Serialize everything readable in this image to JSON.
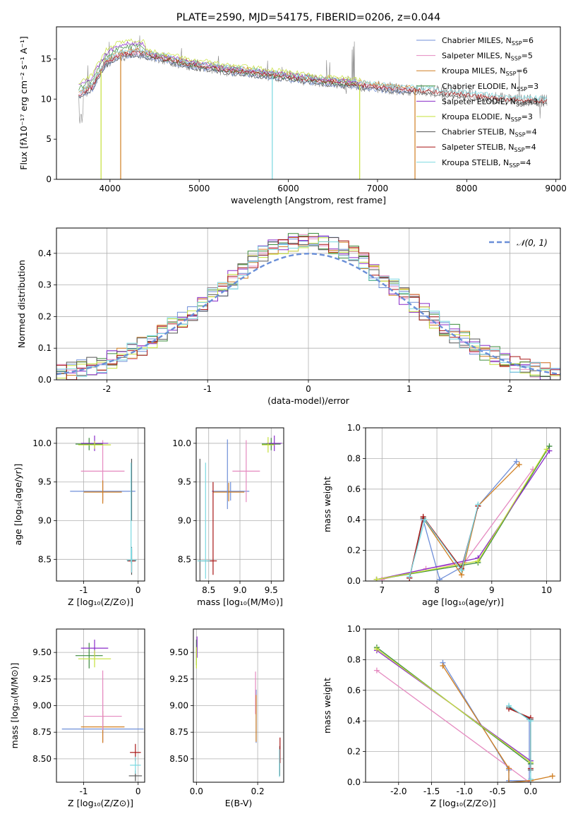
{
  "figure_title": "PLATE=2590, MJD=54175, FIBERID=0206, z=0.044",
  "colors": {
    "Chabrier MILES": "#6f8fd8",
    "Salpeter MILES": "#e58ac0",
    "Kroupa MILES": "#d07f22",
    "Chabrier ELODIE": "#3d8c3d",
    "Salpeter ELODIE": "#8a2bc8",
    "Kroupa ELODIE": "#c5e03a",
    "Chabrier STELIB": "#555555",
    "Salpeter STELIB": "#a81616",
    "Kroupa STELIB": "#7ad8e0",
    "normal": "#6a8fd8",
    "data": "#888888"
  },
  "chart_data": [
    {
      "id": "spectrum",
      "type": "line",
      "xlabel": "wavelength [Angstrom, rest frame]",
      "ylabel": "Flux [fλ10⁻¹⁷ erg cm⁻² s⁻¹ A⁻¹]",
      "xlim": [
        3400,
        9050
      ],
      "ylim": [
        0,
        19
      ],
      "xticks": [
        4000,
        5000,
        6000,
        7000,
        8000,
        9000
      ],
      "yticks": [
        0,
        5,
        10,
        15
      ],
      "legend_position": "top-right",
      "legend": [
        {
          "label": "Chabrier MILES, N",
          "sub": "SSP",
          "value": "=6"
        },
        {
          "label": "Salpeter MILES, N",
          "sub": "SSP",
          "value": "=5"
        },
        {
          "label": "Kroupa MILES, N",
          "sub": "SSP",
          "value": "=6"
        },
        {
          "label": "Chabrier ELODIE, N",
          "sub": "SSP",
          "value": "=3"
        },
        {
          "label": "Salpeter ELODIE, N",
          "sub": "SSP",
          "value": "=3"
        },
        {
          "label": "Kroupa ELODIE, N",
          "sub": "SSP",
          "value": "=3"
        },
        {
          "label": "Chabrier STELIB, N",
          "sub": "SSP",
          "value": "=4"
        },
        {
          "label": "Salpeter STELIB, N",
          "sub": "SSP",
          "value": "=4"
        },
        {
          "label": "Kroupa STELIB, N",
          "sub": "SSP",
          "value": "=4"
        }
      ],
      "data_continuum": [
        [
          3650,
          10.5
        ],
        [
          3800,
          11.5
        ],
        [
          3950,
          14.5
        ],
        [
          4100,
          15.5
        ],
        [
          4300,
          15.8
        ],
        [
          4500,
          15.3
        ],
        [
          4700,
          14.8
        ],
        [
          4900,
          14.3
        ],
        [
          5100,
          14.0
        ],
        [
          5300,
          13.6
        ],
        [
          5500,
          13.4
        ],
        [
          5800,
          13.0
        ],
        [
          6100,
          12.6
        ],
        [
          6400,
          12.2
        ],
        [
          6700,
          11.9
        ],
        [
          7000,
          11.5
        ],
        [
          7300,
          11.2
        ],
        [
          7600,
          11.0
        ],
        [
          8000,
          10.5
        ],
        [
          8400,
          10.0
        ],
        [
          8800,
          9.8
        ]
      ],
      "model_dropouts": [
        {
          "model": "Kroupa ELODIE",
          "x": 3900,
          "to": 0
        },
        {
          "model": "Kroupa MILES",
          "x": 4120,
          "to": 0
        },
        {
          "model": "Kroupa STELIB",
          "x": 5820,
          "to": 0
        },
        {
          "model": "Kroupa ELODIE",
          "x": 6800,
          "to": 0
        },
        {
          "model": "Kroupa MILES",
          "x": 7420,
          "to": 0
        }
      ]
    },
    {
      "id": "residuals",
      "type": "histogram",
      "xlabel": "(data-model)/error",
      "ylabel": "Normed distribution",
      "xlim": [
        -2.5,
        2.5
      ],
      "ylim": [
        0,
        0.48
      ],
      "xticks": [
        -2,
        -1,
        0,
        1,
        2
      ],
      "yticks": [
        0.0,
        0.1,
        0.2,
        0.3,
        0.4
      ],
      "legend": [
        {
          "label": "𝒩(0, 1)",
          "style": "dashed"
        }
      ],
      "legend_position": "top-right",
      "bin_width": 0.1,
      "bin_start": -2.5,
      "bins": 50
    },
    {
      "id": "age_vs_Z",
      "type": "errorbar",
      "xlabel": "Z [log₁₀(Z/Z⊙)]",
      "ylabel": "age  [log₁₀(age/yr)]",
      "xlim": [
        -1.5,
        0.12
      ],
      "ylim": [
        8.22,
        10.2
      ],
      "xticks": [
        -1,
        0
      ],
      "yticks": [
        8.5,
        9.0,
        9.5,
        10.0
      ]
    },
    {
      "id": "age_vs_mass",
      "type": "errorbar",
      "xlabel": "mass [log₁₀(M/M⊙)]",
      "xlim": [
        8.3,
        9.7
      ],
      "ylim": [
        8.22,
        10.2
      ],
      "xticks": [
        8.5,
        9.0,
        9.5
      ],
      "yticks": [
        8.5,
        9.0,
        9.5,
        10.0
      ]
    },
    {
      "id": "weight_vs_age",
      "type": "line",
      "xlabel": "age  [log₁₀(age/yr)]",
      "ylabel": "mass weight",
      "xlim": [
        6.7,
        10.25
      ],
      "ylim": [
        0,
        1.0
      ],
      "xticks": [
        7,
        8,
        9,
        10
      ],
      "yticks": [
        0.0,
        0.2,
        0.4,
        0.6,
        0.8,
        1.0
      ],
      "series": [
        {
          "name": "Chabrier MILES",
          "x": [
            7.5,
            7.75,
            8.05,
            8.45,
            8.75,
            9.45
          ],
          "y": [
            0.02,
            0.4,
            0.01,
            0.09,
            0.49,
            0.78
          ]
        },
        {
          "name": "Salpeter MILES",
          "x": [
            7.0,
            7.8,
            8.5,
            9.75
          ],
          "y": [
            0.01,
            0.08,
            0.12,
            0.73
          ]
        },
        {
          "name": "Kroupa MILES",
          "x": [
            7.5,
            7.75,
            8.45,
            8.75,
            9.5
          ],
          "y": [
            0.02,
            0.41,
            0.04,
            0.49,
            0.76
          ]
        },
        {
          "name": "Chabrier ELODIE",
          "x": [
            6.9,
            8.75,
            10.05
          ],
          "y": [
            0.01,
            0.12,
            0.88
          ]
        },
        {
          "name": "Salpeter ELODIE",
          "x": [
            6.9,
            8.75,
            10.05
          ],
          "y": [
            0.01,
            0.15,
            0.85
          ]
        },
        {
          "name": "Kroupa ELODIE",
          "x": [
            6.9,
            8.75,
            10.0
          ],
          "y": [
            0.01,
            0.13,
            0.86
          ]
        },
        {
          "name": "Chabrier STELIB",
          "x": [
            7.5,
            7.75,
            8.45,
            8.75
          ],
          "y": [
            0.02,
            0.41,
            0.08,
            0.49
          ]
        },
        {
          "name": "Salpeter STELIB",
          "x": [
            7.5,
            7.75,
            8.45,
            8.75
          ],
          "y": [
            0.02,
            0.42,
            0.08,
            0.49
          ]
        },
        {
          "name": "Kroupa STELIB",
          "x": [
            7.5,
            7.78,
            8.45,
            8.75
          ],
          "y": [
            0.03,
            0.4,
            0.07,
            0.5
          ]
        }
      ]
    },
    {
      "id": "mass_vs_Z",
      "type": "errorbar",
      "xlabel": "Z [log₁₀(Z/Z⊙)]",
      "ylabel": "mass [log₁₀(M/M⊙)]",
      "xlim": [
        -1.5,
        0.12
      ],
      "ylim": [
        8.28,
        9.72
      ],
      "xticks": [
        -1,
        0
      ],
      "yticks": [
        8.5,
        8.75,
        9.0,
        9.25,
        9.5
      ]
    },
    {
      "id": "mass_vs_ebv",
      "type": "errorbar",
      "xlabel": "E(B-V)",
      "xlim": [
        -0.01,
        0.285
      ],
      "ylim": [
        8.28,
        9.72
      ],
      "xticks": [
        0.0,
        0.2
      ],
      "yticks": [
        8.5,
        8.75,
        9.0,
        9.25,
        9.5
      ],
      "points": [
        {
          "model": "Chabrier ELODIE",
          "x": 0.0,
          "y": 9.5,
          "yerr": 0.12
        },
        {
          "model": "Salpeter ELODIE",
          "x": 0.002,
          "y": 9.55,
          "yerr": 0.1
        },
        {
          "model": "Kroupa ELODIE",
          "x": 0.0,
          "y": 9.45,
          "yerr": 0.1
        },
        {
          "model": "Chabrier MILES",
          "x": 0.195,
          "y": 8.9,
          "yerr": 0.25
        },
        {
          "model": "Salpeter MILES",
          "x": 0.193,
          "y": 9.12,
          "yerr": 0.2
        },
        {
          "model": "Kroupa MILES",
          "x": 0.195,
          "y": 8.88,
          "yerr": 0.22
        },
        {
          "model": "Chabrier STELIB",
          "x": 0.272,
          "y": 8.48,
          "yerr": 0.14
        },
        {
          "model": "Salpeter STELIB",
          "x": 0.273,
          "y": 8.58,
          "yerr": 0.12
        },
        {
          "model": "Kroupa STELIB",
          "x": 0.271,
          "y": 8.46,
          "yerr": 0.13
        }
      ]
    },
    {
      "id": "weight_vs_Z",
      "type": "line",
      "xlabel": "Z [log₁₀(Z/Z⊙)]",
      "ylabel": "mass weight",
      "xlim": [
        -2.5,
        0.45
      ],
      "ylim": [
        0,
        1.0
      ],
      "xticks": [
        -2.0,
        -1.5,
        -1.0,
        -0.5,
        0.0
      ],
      "yticks": [
        0.0,
        0.2,
        0.4,
        0.6,
        0.8,
        1.0
      ],
      "series": [
        {
          "name": "Chabrier MILES",
          "x": [
            -1.33,
            -0.33,
            -0.33,
            -0.02,
            -0.02
          ],
          "y": [
            0.78,
            0.08,
            0.01,
            0.01,
            0.41
          ]
        },
        {
          "name": "Salpeter MILES",
          "x": [
            -2.33,
            -0.02
          ],
          "y": [
            0.73,
            0.0
          ]
        },
        {
          "name": "Kroupa MILES",
          "x": [
            -1.33,
            -0.33,
            -0.33,
            0.0,
            0.33
          ],
          "y": [
            0.76,
            0.09,
            0.0,
            0.01,
            0.04
          ]
        },
        {
          "name": "Chabrier ELODIE",
          "x": [
            -2.33,
            0.0
          ],
          "y": [
            0.88,
            0.12
          ]
        },
        {
          "name": "Salpeter ELODIE",
          "x": [
            -2.33,
            0.0
          ],
          "y": [
            0.86,
            0.14
          ]
        },
        {
          "name": "Kroupa ELODIE",
          "x": [
            -2.33,
            0.0
          ],
          "y": [
            0.87,
            0.13
          ]
        },
        {
          "name": "Chabrier STELIB",
          "x": [
            -0.33,
            0.0,
            0.0
          ],
          "y": [
            0.49,
            0.41,
            0.08
          ]
        },
        {
          "name": "Salpeter STELIB",
          "x": [
            -0.33,
            0.0,
            0.0
          ],
          "y": [
            0.48,
            0.42,
            0.09
          ]
        },
        {
          "name": "Kroupa STELIB",
          "x": [
            -0.33,
            0.0,
            0.0
          ],
          "y": [
            0.5,
            0.4,
            0.02
          ]
        }
      ]
    }
  ]
}
